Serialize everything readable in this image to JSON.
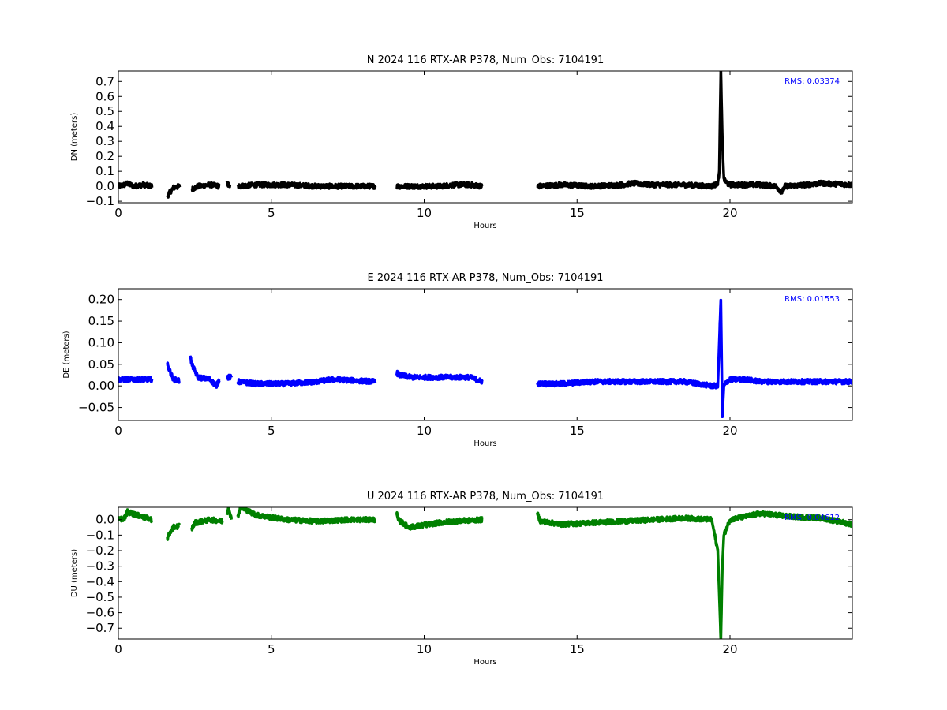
{
  "chart_data": [
    {
      "type": "line",
      "title": "N 2024 116 RTX-AR  P378, Num_Obs: 7104191",
      "xlabel": "Hours",
      "ylabel": "DN (meters)",
      "xlim": [
        0,
        24
      ],
      "ylim": [
        -0.11,
        0.77
      ],
      "xticks": [
        "0",
        "5",
        "10",
        "15",
        "20"
      ],
      "yticks": [
        "−0.1",
        "0.0",
        "0.1",
        "0.2",
        "0.3",
        "0.4",
        "0.5",
        "0.6",
        "0.7"
      ],
      "rms_label": "RMS:  0.03374",
      "color": "#000000",
      "grid": false,
      "series": [
        {
          "x": [
            0.0,
            0.2,
            0.3,
            0.5,
            0.8,
            1.1,
            1.6,
            1.65,
            1.8,
            2.0,
            2.4,
            2.6,
            3.0,
            3.3,
            3.55,
            3.65,
            3.9,
            4.5,
            5.5,
            6.5,
            7.5,
            8.4,
            9.1,
            9.6,
            10.5,
            11.0,
            11.5,
            11.9,
            13.7,
            14.5,
            15.5,
            16.5,
            16.8,
            17.5,
            18.5,
            19.4,
            19.6,
            19.65,
            19.7,
            19.75,
            19.8,
            19.9,
            20.0,
            20.5,
            21.0,
            21.5,
            21.7,
            21.8,
            22.5,
            23.0,
            24.0
          ],
          "y": [
            0.0,
            0.01,
            0.02,
            0.0,
            0.01,
            0.0,
            -0.07,
            -0.05,
            -0.01,
            0.0,
            -0.02,
            0.0,
            0.01,
            0.0,
            0.02,
            0.0,
            0.0,
            0.01,
            0.01,
            0.0,
            0.0,
            0.0,
            0.0,
            0.0,
            0.0,
            0.01,
            0.01,
            0.0,
            0.0,
            0.01,
            0.0,
            0.01,
            0.02,
            0.01,
            0.01,
            0.0,
            0.02,
            0.1,
            0.77,
            0.3,
            0.05,
            0.02,
            0.01,
            0.01,
            0.01,
            0.0,
            -0.04,
            0.0,
            0.01,
            0.02,
            0.01
          ],
          "breaks": [
            [
              1.1,
              1.6
            ],
            [
              2.0,
              2.4
            ],
            [
              3.3,
              3.55
            ],
            [
              3.65,
              3.9
            ],
            [
              8.4,
              9.1
            ],
            [
              11.9,
              13.7
            ]
          ]
        }
      ]
    },
    {
      "type": "line",
      "title": "E 2024 116 RTX-AR  P378, Num_Obs: 7104191",
      "xlabel": "Hours",
      "ylabel": "DE (meters)",
      "xlim": [
        0,
        24
      ],
      "ylim": [
        -0.08,
        0.225
      ],
      "xticks": [
        "0",
        "5",
        "10",
        "15",
        "20"
      ],
      "yticks": [
        "−0.05",
        "0.00",
        "0.05",
        "0.10",
        "0.15",
        "0.20"
      ],
      "rms_label": "RMS:  0.01553",
      "color": "#0000ff",
      "grid": false,
      "series": [
        {
          "x": [
            0.0,
            0.5,
            1.1,
            1.6,
            1.65,
            1.8,
            2.0,
            2.35,
            2.4,
            2.6,
            3.0,
            3.2,
            3.3,
            3.55,
            3.7,
            3.9,
            4.5,
            5.5,
            6.5,
            7.0,
            8.4,
            9.1,
            9.2,
            9.6,
            10.5,
            11.0,
            11.5,
            11.9,
            13.7,
            14.5,
            15.5,
            16.5,
            17.5,
            18.5,
            19.4,
            19.6,
            19.7,
            19.75,
            19.8,
            19.9,
            20.0,
            20.5,
            21.0,
            21.5,
            22.0,
            23.0,
            24.0
          ],
          "y": [
            0.015,
            0.015,
            0.015,
            0.05,
            0.04,
            0.015,
            0.012,
            0.07,
            0.05,
            0.02,
            0.015,
            0.0,
            0.015,
            0.02,
            0.02,
            0.01,
            0.005,
            0.005,
            0.01,
            0.015,
            0.01,
            0.03,
            0.025,
            0.02,
            0.02,
            0.02,
            0.02,
            0.01,
            0.005,
            0.005,
            0.01,
            0.01,
            0.01,
            0.01,
            0.0,
            0.0,
            0.2,
            -0.07,
            0.0,
            0.01,
            0.015,
            0.015,
            0.01,
            0.01,
            0.01,
            0.01,
            0.01
          ],
          "breaks": [
            [
              1.1,
              1.6
            ],
            [
              2.0,
              2.35
            ],
            [
              3.3,
              3.55
            ],
            [
              3.7,
              3.9
            ],
            [
              8.4,
              9.1
            ],
            [
              11.9,
              13.7
            ]
          ]
        }
      ]
    },
    {
      "type": "line",
      "title": "U 2024 116 RTX-AR  P378, Num_Obs: 7104191",
      "xlabel": "Hours",
      "ylabel": "DU (meters)",
      "xlim": [
        0,
        24
      ],
      "ylim": [
        -0.77,
        0.08
      ],
      "xticks": [
        "0",
        "5",
        "10",
        "15",
        "20"
      ],
      "yticks": [
        "−0.7",
        "−0.6",
        "−0.5",
        "−0.4",
        "−0.3",
        "−0.2",
        "−0.1",
        "0.0"
      ],
      "rms_label": "RMS:  0.04612",
      "color": "#008000",
      "grid": false,
      "series": [
        {
          "x": [
            0.0,
            0.2,
            0.3,
            0.6,
            1.1,
            1.6,
            1.65,
            1.8,
            2.0,
            2.4,
            2.5,
            3.0,
            3.4,
            3.55,
            3.6,
            3.7,
            3.9,
            4.0,
            4.5,
            5.5,
            6.5,
            7.5,
            8.4,
            9.1,
            9.15,
            9.5,
            10.5,
            11.0,
            11.9,
            13.7,
            13.8,
            14.5,
            15.5,
            16.5,
            17.5,
            18.5,
            19.4,
            19.6,
            19.7,
            19.75,
            19.8,
            20.0,
            20.5,
            21.0,
            21.5,
            22.0,
            23.0,
            24.0
          ],
          "y": [
            0.0,
            0.01,
            0.05,
            0.03,
            0.0,
            -0.12,
            -0.1,
            -0.05,
            -0.04,
            -0.06,
            -0.02,
            0.0,
            -0.01,
            0.03,
            0.08,
            0.0,
            0.02,
            0.08,
            0.03,
            0.0,
            -0.01,
            0.0,
            0.0,
            0.04,
            0.0,
            -0.05,
            -0.02,
            -0.01,
            0.0,
            0.04,
            -0.01,
            -0.03,
            -0.02,
            -0.01,
            0.0,
            0.01,
            0.0,
            -0.2,
            -0.77,
            -0.3,
            -0.1,
            0.0,
            0.02,
            0.04,
            0.03,
            0.02,
            0.01,
            -0.03
          ],
          "breaks": [
            [
              1.1,
              1.6
            ],
            [
              2.0,
              2.4
            ],
            [
              3.4,
              3.55
            ],
            [
              3.7,
              3.9
            ],
            [
              8.4,
              9.1
            ],
            [
              11.9,
              13.7
            ]
          ]
        }
      ]
    }
  ]
}
